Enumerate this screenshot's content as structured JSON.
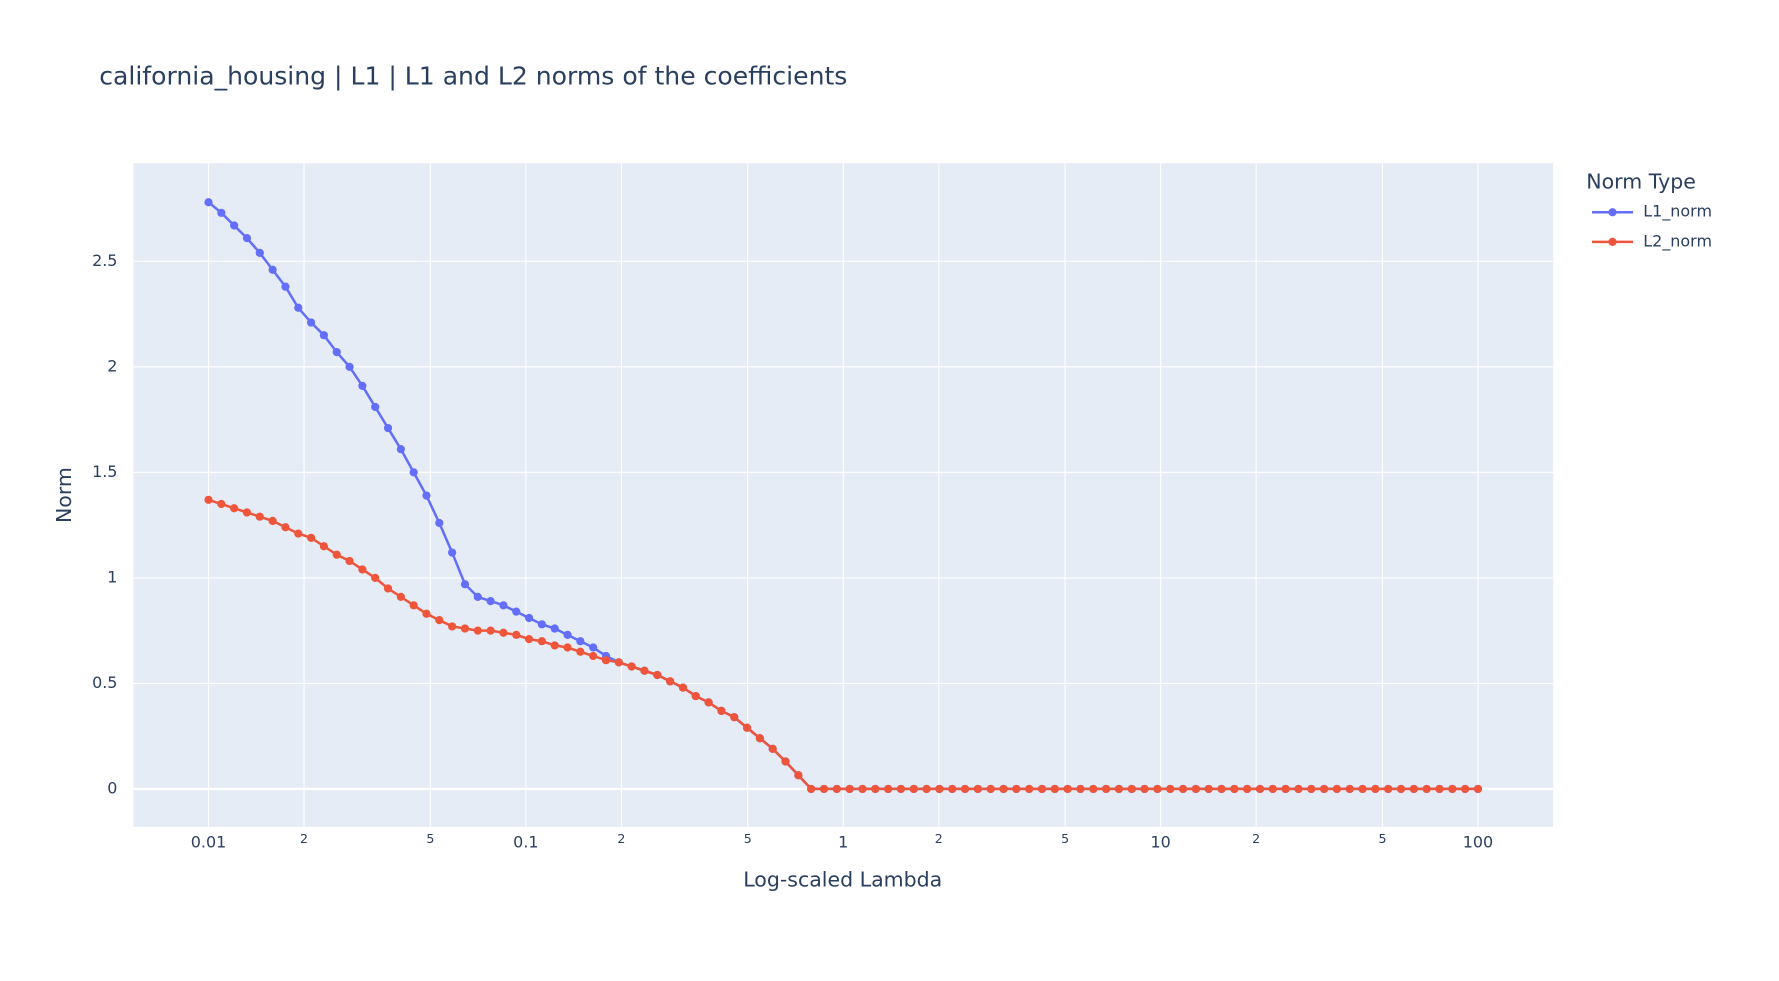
{
  "chart_data": {
    "type": "line",
    "title": "california_housing | L1 | L1 and L2 norms of the coefficients",
    "x_label": "Log-scaled Lambda",
    "y_label": "Norm",
    "legend_title": "Norm Type",
    "legend_position": "right",
    "x_log": true,
    "grid": true,
    "x": [
      0.01,
      0.010975,
      0.012045,
      0.013219,
      0.014508,
      0.015923,
      0.017475,
      0.019179,
      0.021049,
      0.023101,
      0.025354,
      0.027826,
      0.030539,
      0.033516,
      0.036784,
      0.04037,
      0.044306,
      0.048626,
      0.053367,
      0.05857,
      0.064281,
      0.070548,
      0.077426,
      0.084975,
      0.09326,
      0.10235,
      0.11233,
      0.12328,
      0.1353,
      0.14849,
      0.16297,
      0.17886,
      0.1963,
      0.21544,
      0.23645,
      0.2595,
      0.2848,
      0.31257,
      0.34305,
      0.37649,
      0.4132,
      0.45349,
      0.4977,
      0.54623,
      0.59948,
      0.65793,
      0.72208,
      0.79248,
      0.86975,
      0.95455,
      1.0476,
      1.1498,
      1.2619,
      1.3849,
      1.5199,
      1.6681,
      1.8307,
      2.0092,
      2.2051,
      2.4201,
      2.6561,
      2.915,
      3.1993,
      3.5112,
      3.8535,
      4.2292,
      4.6416,
      5.0941,
      5.5908,
      6.1359,
      6.7342,
      7.3907,
      8.1113,
      8.9022,
      9.7701,
      10.723,
      11.768,
      12.915,
      14.175,
      15.557,
      17.074,
      18.738,
      20.565,
      22.57,
      24.771,
      27.186,
      29.836,
      32.745,
      35.938,
      39.442,
      43.288,
      47.508,
      52.14,
      57.224,
      62.803,
      68.926,
      75.646,
      83.022,
      91.116,
      100
    ],
    "series": [
      {
        "name": "L1_norm",
        "color": "#636efa",
        "values": [
          2.78,
          2.73,
          2.67,
          2.61,
          2.54,
          2.46,
          2.38,
          2.28,
          2.21,
          2.15,
          2.07,
          2.0,
          1.91,
          1.81,
          1.71,
          1.61,
          1.5,
          1.39,
          1.26,
          1.12,
          0.97,
          0.91,
          0.89,
          0.87,
          0.84,
          0.81,
          0.78,
          0.76,
          0.73,
          0.7,
          0.67,
          0.63,
          0.6,
          0.58,
          0.56,
          0.54,
          0.51,
          0.48,
          0.44,
          0.41,
          0.37,
          0.34,
          0.29,
          0.24,
          0.19,
          0.13,
          0.065,
          0,
          0,
          0,
          0,
          0,
          0,
          0,
          0,
          0,
          0,
          0,
          0,
          0,
          0,
          0,
          0,
          0,
          0,
          0,
          0,
          0,
          0,
          0,
          0,
          0,
          0,
          0,
          0,
          0,
          0,
          0,
          0,
          0,
          0,
          0,
          0,
          0,
          0,
          0,
          0,
          0,
          0,
          0,
          0,
          0,
          0,
          0,
          0,
          0,
          0,
          0,
          0,
          0
        ]
      },
      {
        "name": "L2_norm",
        "color": "#EF553B",
        "values": [
          1.37,
          1.35,
          1.33,
          1.31,
          1.29,
          1.27,
          1.24,
          1.21,
          1.19,
          1.15,
          1.11,
          1.08,
          1.04,
          1.0,
          0.95,
          0.91,
          0.87,
          0.83,
          0.8,
          0.77,
          0.76,
          0.75,
          0.75,
          0.74,
          0.73,
          0.71,
          0.7,
          0.68,
          0.67,
          0.65,
          0.63,
          0.61,
          0.6,
          0.58,
          0.56,
          0.54,
          0.51,
          0.48,
          0.44,
          0.41,
          0.37,
          0.34,
          0.29,
          0.24,
          0.19,
          0.13,
          0.065,
          0,
          0,
          0,
          0,
          0,
          0,
          0,
          0,
          0,
          0,
          0,
          0,
          0,
          0,
          0,
          0,
          0,
          0,
          0,
          0,
          0,
          0,
          0,
          0,
          0,
          0,
          0,
          0,
          0,
          0,
          0,
          0,
          0,
          0,
          0,
          0,
          0,
          0,
          0,
          0,
          0,
          0,
          0,
          0,
          0,
          0,
          0,
          0,
          0,
          0,
          0,
          0,
          0
        ]
      }
    ],
    "xlim": [
      0.0058,
      172.6
    ],
    "ylim": [
      -0.18,
      2.965
    ],
    "xticks": [
      0.01,
      {
        "value": 0.02,
        "label": "2"
      },
      {
        "value": 0.05,
        "label": "5"
      },
      0.1,
      {
        "value": 0.2,
        "label": "2"
      },
      {
        "value": 0.5,
        "label": "5"
      },
      1,
      {
        "value": 2,
        "label": "2"
      },
      {
        "value": 5,
        "label": "5"
      },
      10,
      {
        "value": 20,
        "label": "2"
      },
      {
        "value": 50,
        "label": "5"
      },
      100
    ],
    "yticks": [
      0,
      0.5,
      1,
      1.5,
      2,
      2.5
    ]
  }
}
